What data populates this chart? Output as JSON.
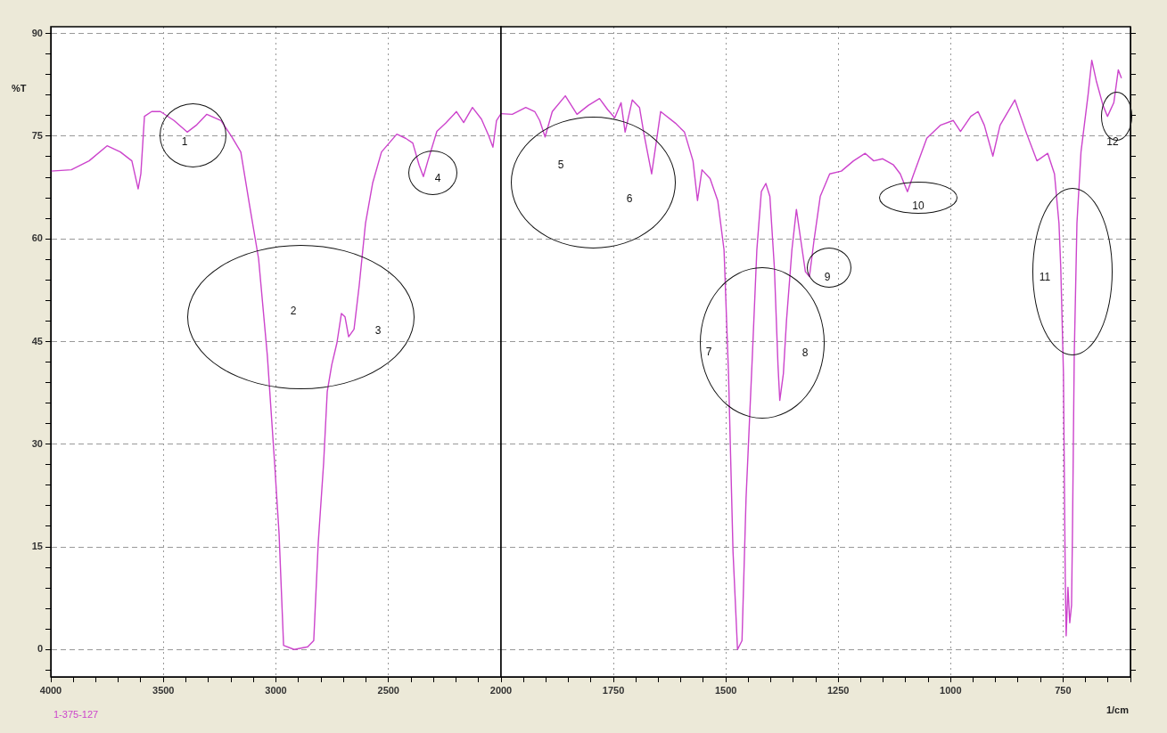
{
  "chart_data": [
    {
      "type": "line",
      "ylabel": "%T",
      "marker": "none",
      "grid": true,
      "annotations": [
        "1",
        "2",
        "3",
        "4",
        "1-375-127"
      ],
      "x": [
        4000,
        3909,
        3830,
        3750,
        3691,
        3640,
        3612,
        3600,
        3584,
        3552,
        3513,
        3453,
        3394,
        3354,
        3307,
        3244,
        3196,
        3156,
        3117,
        3077,
        3038,
        3006,
        2986,
        2966,
        2919,
        2859,
        2832,
        2812,
        2788,
        2772,
        2752,
        2729,
        2709,
        2693,
        2677,
        2653,
        2630,
        2602,
        2570,
        2531,
        2463,
        2424,
        2392,
        2364,
        2345,
        2325,
        2285,
        2246,
        2198,
        2166,
        2127,
        2087,
        2055,
        2036,
        2020,
        2000
      ],
      "series": [
        {
          "color": "#cc44cc",
          "values": [
            69.9,
            70.1,
            71.4,
            73.6,
            72.7,
            71.4,
            67.3,
            69.5,
            77.9,
            78.6,
            78.6,
            77.3,
            75.6,
            76.6,
            78.2,
            77.3,
            74.9,
            72.7,
            64.9,
            57.1,
            42.9,
            27.3,
            16.9,
            0.6,
            0,
            0.4,
            1.3,
            15.6,
            27.3,
            37.7,
            41.6,
            44.8,
            49.1,
            48.6,
            45.7,
            46.8,
            53.2,
            62.3,
            68.2,
            72.7,
            75.3,
            74.7,
            74.0,
            70.8,
            69.1,
            71.4,
            75.7,
            76.9,
            78.6,
            77.0,
            79.2,
            77.5,
            75.1,
            73.4,
            77.3,
            78.3
          ]
        }
      ],
      "xlim": [
        4000,
        2000
      ],
      "xticks": [
        4000,
        {
          "value": 3900,
          "label": null
        },
        {
          "value": 3800,
          "label": null
        },
        {
          "value": 3700,
          "label": null
        },
        {
          "value": 3600,
          "label": null
        },
        3500,
        {
          "value": 3400,
          "label": null
        },
        {
          "value": 3300,
          "label": null
        },
        {
          "value": 3200,
          "label": null
        },
        {
          "value": 3100,
          "label": null
        },
        3000,
        {
          "value": 2900,
          "label": null
        },
        {
          "value": 2800,
          "label": null
        },
        {
          "value": 2700,
          "label": null
        },
        {
          "value": 2600,
          "label": null
        },
        2500,
        {
          "value": 2400,
          "label": null
        },
        {
          "value": 2300,
          "label": null
        },
        {
          "value": 2200,
          "label": null
        },
        {
          "value": 2100,
          "label": null
        },
        2000
      ],
      "ylim": [
        -4,
        91
      ],
      "yticks": [
        {
          "value": -3,
          "label": null
        },
        0,
        {
          "value": 3,
          "label": null
        },
        {
          "value": 6,
          "label": null
        },
        {
          "value": 9,
          "label": null
        },
        {
          "value": 12,
          "label": null
        },
        15,
        {
          "value": 18,
          "label": null
        },
        {
          "value": 21,
          "label": null
        },
        {
          "value": 24,
          "label": null
        },
        {
          "value": 27,
          "label": null
        },
        30,
        {
          "value": 33,
          "label": null
        },
        {
          "value": 36,
          "label": null
        },
        {
          "value": 39,
          "label": null
        },
        {
          "value": 42,
          "label": null
        },
        45,
        {
          "value": 48,
          "label": null
        },
        {
          "value": 51,
          "label": null
        },
        {
          "value": 54,
          "label": null
        },
        {
          "value": 57,
          "label": null
        },
        60,
        {
          "value": 63,
          "label": null
        },
        {
          "value": 66,
          "label": null
        },
        {
          "value": 69,
          "label": null
        },
        {
          "value": 72,
          "label": null
        },
        75,
        {
          "value": 78,
          "label": null
        },
        {
          "value": 81,
          "label": null
        },
        {
          "value": 84,
          "label": null
        },
        {
          "value": 87,
          "label": null
        },
        90
      ]
    },
    {
      "type": "line",
      "xlabel": "1/cm",
      "marker": "none",
      "grid": true,
      "tick_labels": "x",
      "annotations": [
        "5",
        "6",
        "7",
        "8",
        "9",
        "10",
        "11",
        "12"
      ],
      "x": [
        2000,
        1975,
        1945,
        1925,
        1914,
        1902,
        1886,
        1857,
        1831,
        1806,
        1781,
        1763,
        1747,
        1733,
        1724,
        1708,
        1692,
        1682,
        1665,
        1655,
        1645,
        1612,
        1592,
        1573,
        1563,
        1553,
        1535,
        1518,
        1504,
        1494,
        1484,
        1474,
        1464,
        1455,
        1441,
        1431,
        1421,
        1411,
        1402,
        1392,
        1384,
        1380,
        1372,
        1365,
        1353,
        1343,
        1333,
        1323,
        1314,
        1304,
        1290,
        1269,
        1243,
        1216,
        1190,
        1171,
        1151,
        1127,
        1112,
        1096,
        1082,
        1053,
        1023,
        994,
        978,
        955,
        939,
        925,
        906,
        890,
        857,
        831,
        808,
        784,
        769,
        759,
        755,
        749,
        745,
        743,
        739,
        735,
        731,
        729,
        725,
        719,
        710,
        694,
        686,
        676,
        661,
        651,
        637,
        627,
        620
      ],
      "series": [
        {
          "color": "#cc44cc",
          "values": [
            78.3,
            78.2,
            79.2,
            78.6,
            77.3,
            74.9,
            78.6,
            80.9,
            78.2,
            79.5,
            80.5,
            78.9,
            77.7,
            79.9,
            75.6,
            80.3,
            79.2,
            75.3,
            69.5,
            74.0,
            78.6,
            76.9,
            75.6,
            71.4,
            65.6,
            70.1,
            68.8,
            65.6,
            58.4,
            40.3,
            14.3,
            0,
            1.3,
            22.1,
            42.9,
            58.4,
            66.9,
            68.1,
            66.2,
            55.8,
            41.6,
            36.4,
            40.3,
            48.1,
            58.4,
            64.3,
            59.7,
            55.2,
            54.5,
            59.7,
            66.2,
            69.5,
            69.9,
            71.4,
            72.5,
            71.4,
            71.7,
            70.8,
            69.5,
            66.9,
            69.5,
            74.7,
            76.6,
            77.3,
            75.7,
            77.9,
            78.6,
            76.6,
            72.1,
            76.6,
            80.3,
            75.4,
            71.4,
            72.5,
            69.5,
            62.3,
            55.8,
            40.3,
            10.4,
            2.0,
            9.1,
            3.9,
            6.5,
            16.9,
            42.9,
            62.3,
            72.7,
            81.2,
            86.1,
            83.1,
            79.5,
            77.9,
            79.9,
            84.7,
            83.5
          ]
        }
      ],
      "xlim": [
        2000,
        600
      ],
      "xticks": [
        {
          "value": 2000,
          "label": null
        },
        {
          "value": 1950,
          "label": null
        },
        {
          "value": 1900,
          "label": null
        },
        {
          "value": 1850,
          "label": null
        },
        {
          "value": 1800,
          "label": null
        },
        1750,
        {
          "value": 1700,
          "label": null
        },
        {
          "value": 1650,
          "label": null
        },
        {
          "value": 1600,
          "label": null
        },
        {
          "value": 1550,
          "label": null
        },
        1500,
        {
          "value": 1450,
          "label": null
        },
        {
          "value": 1400,
          "label": null
        },
        {
          "value": 1350,
          "label": null
        },
        {
          "value": 1300,
          "label": null
        },
        1250,
        {
          "value": 1200,
          "label": null
        },
        {
          "value": 1150,
          "label": null
        },
        {
          "value": 1100,
          "label": null
        },
        {
          "value": 1050,
          "label": null
        },
        1000,
        {
          "value": 950,
          "label": null
        },
        {
          "value": 900,
          "label": null
        },
        {
          "value": 850,
          "label": null
        },
        {
          "value": 800,
          "label": null
        },
        750,
        {
          "value": 700,
          "label": null
        },
        {
          "value": 650,
          "label": null
        },
        {
          "value": 600,
          "label": null
        }
      ],
      "ylim": [
        -4,
        91
      ],
      "yticks": [
        {
          "value": -3,
          "label": null
        },
        0,
        {
          "value": 3,
          "label": null
        },
        {
          "value": 6,
          "label": null
        },
        {
          "value": 9,
          "label": null
        },
        {
          "value": 12,
          "label": null
        },
        15,
        {
          "value": 18,
          "label": null
        },
        {
          "value": 21,
          "label": null
        },
        {
          "value": 24,
          "label": null
        },
        {
          "value": 27,
          "label": null
        },
        30,
        {
          "value": 33,
          "label": null
        },
        {
          "value": 36,
          "label": null
        },
        {
          "value": 39,
          "label": null
        },
        {
          "value": 42,
          "label": null
        },
        45,
        {
          "value": 48,
          "label": null
        },
        {
          "value": 51,
          "label": null
        },
        {
          "value": 54,
          "label": null
        },
        {
          "value": 57,
          "label": null
        },
        60,
        {
          "value": 63,
          "label": null
        },
        {
          "value": 66,
          "label": null
        },
        {
          "value": 69,
          "label": null
        },
        {
          "value": 72,
          "label": null
        },
        75,
        {
          "value": 78,
          "label": null
        },
        {
          "value": 81,
          "label": null
        },
        {
          "value": 84,
          "label": null
        },
        {
          "value": 87,
          "label": null
        },
        90
      ]
    }
  ]
}
